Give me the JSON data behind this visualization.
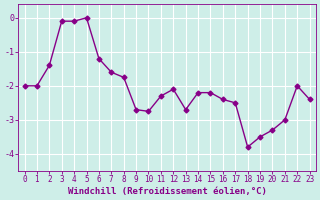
{
  "x": [
    0,
    1,
    2,
    3,
    4,
    5,
    6,
    7,
    8,
    9,
    10,
    11,
    12,
    13,
    14,
    15,
    16,
    17,
    18,
    19,
    20,
    21,
    22,
    23
  ],
  "y": [
    -2.0,
    -2.0,
    -1.4,
    -0.1,
    -0.1,
    0.0,
    -1.2,
    -1.6,
    -1.75,
    -2.7,
    -2.75,
    -2.3,
    -2.1,
    -2.7,
    -2.2,
    -2.2,
    -2.4,
    -2.5,
    -3.8,
    -3.5,
    -3.3,
    -3.0,
    -2.0,
    -2.4
  ],
  "line_color": "#880088",
  "marker": "D",
  "markersize": 2.5,
  "linewidth": 1.0,
  "bg_color": "#ceeee8",
  "grid_color": "#ffffff",
  "xlabel": "Windchill (Refroidissement éolien,°C)",
  "xlabel_fontsize": 6.5,
  "tick_fontsize": 5.5,
  "ylim": [
    -4.5,
    0.4
  ],
  "xlim": [
    -0.5,
    23.5
  ],
  "yticks": [
    0,
    -1,
    -2,
    -3,
    -4
  ],
  "xticks": [
    0,
    1,
    2,
    3,
    4,
    5,
    6,
    7,
    8,
    9,
    10,
    11,
    12,
    13,
    14,
    15,
    16,
    17,
    18,
    19,
    20,
    21,
    22,
    23
  ]
}
